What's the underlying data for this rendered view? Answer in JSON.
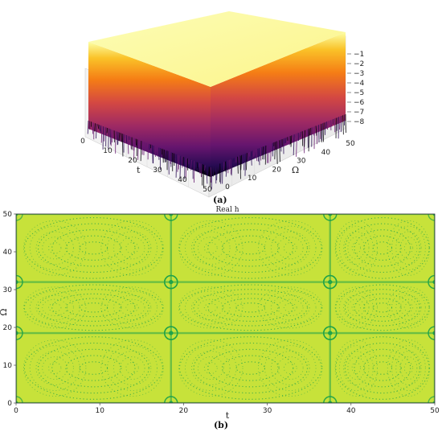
{
  "chart_data": [
    {
      "type": "surface3d",
      "panel_label": "(a)",
      "xlabel": "t",
      "ylabel": "Ω",
      "x_ticks": [
        "0",
        "10",
        "20",
        "30",
        "40",
        "50"
      ],
      "y_ticks": [
        "0",
        "10",
        "20",
        "30",
        "40",
        "50"
      ],
      "z_ticks": [
        "−1",
        "−2",
        "−3",
        "−4",
        "−5",
        "−6",
        "−7",
        "−8"
      ],
      "xlim": [
        0,
        50
      ],
      "ylim": [
        0,
        50
      ],
      "zlim": [
        -8.5,
        -0.5
      ],
      "colormap": [
        "#fcffa4",
        "#fac228",
        "#f57d15",
        "#d44842",
        "#9f2a63",
        "#65156e",
        "#280b53",
        "#000004"
      ]
    },
    {
      "type": "heatmap",
      "panel_label": "(b)",
      "title": "Real h",
      "xlabel": "t",
      "ylabel": "Ω",
      "x_ticks": [
        "0",
        "10",
        "20",
        "30",
        "40",
        "50"
      ],
      "y_ticks": [
        "0",
        "10",
        "20",
        "30",
        "40",
        "50"
      ],
      "xlim": [
        0,
        50
      ],
      "ylim": [
        0,
        50
      ],
      "background_color": "#c7e23a",
      "pattern_color": "#1fa34a",
      "cell_boundaries_t": [
        0,
        18.5,
        37.5,
        50
      ],
      "cell_boundaries_omega": [
        0,
        18.5,
        32,
        50
      ]
    }
  ]
}
